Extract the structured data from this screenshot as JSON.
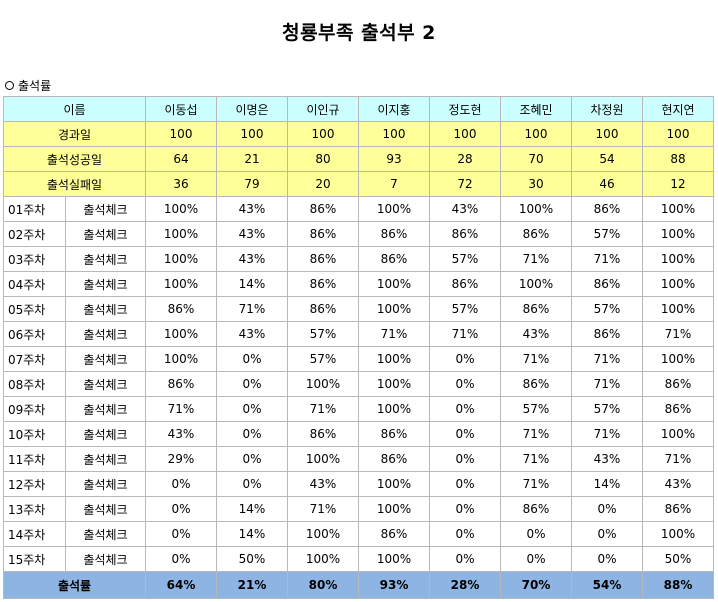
{
  "title": "청룡부족 출석부 2",
  "section_label": "출석률",
  "header": {
    "name_label": "이름",
    "members": [
      "이동섭",
      "이명은",
      "이인규",
      "이지홍",
      "정도현",
      "조혜민",
      "차정원",
      "현지연"
    ]
  },
  "summary_rows": [
    {
      "label": "경과일",
      "values": [
        "100",
        "100",
        "100",
        "100",
        "100",
        "100",
        "100",
        "100"
      ]
    },
    {
      "label": "출석성공일",
      "values": [
        "64",
        "21",
        "80",
        "93",
        "28",
        "70",
        "54",
        "88"
      ]
    },
    {
      "label": "출석실패일",
      "values": [
        "36",
        "79",
        "20",
        "7",
        "72",
        "30",
        "46",
        "12"
      ]
    }
  ],
  "week_rows": [
    {
      "week": "01주차",
      "label": "출석체크",
      "values": [
        "100%",
        "43%",
        "86%",
        "100%",
        "43%",
        "100%",
        "86%",
        "100%"
      ]
    },
    {
      "week": "02주차",
      "label": "출석체크",
      "values": [
        "100%",
        "43%",
        "86%",
        "86%",
        "86%",
        "86%",
        "57%",
        "100%"
      ]
    },
    {
      "week": "03주차",
      "label": "출석체크",
      "values": [
        "100%",
        "43%",
        "86%",
        "86%",
        "57%",
        "71%",
        "71%",
        "100%"
      ]
    },
    {
      "week": "04주차",
      "label": "출석체크",
      "values": [
        "100%",
        "14%",
        "86%",
        "100%",
        "86%",
        "100%",
        "86%",
        "100%"
      ]
    },
    {
      "week": "05주차",
      "label": "출석체크",
      "values": [
        "86%",
        "71%",
        "86%",
        "100%",
        "57%",
        "86%",
        "57%",
        "100%"
      ]
    },
    {
      "week": "06주차",
      "label": "출석체크",
      "values": [
        "100%",
        "43%",
        "57%",
        "71%",
        "71%",
        "43%",
        "86%",
        "71%"
      ]
    },
    {
      "week": "07주차",
      "label": "출석체크",
      "values": [
        "100%",
        "0%",
        "57%",
        "100%",
        "0%",
        "71%",
        "71%",
        "100%"
      ]
    },
    {
      "week": "08주차",
      "label": "출석체크",
      "values": [
        "86%",
        "0%",
        "100%",
        "100%",
        "0%",
        "86%",
        "71%",
        "86%"
      ]
    },
    {
      "week": "09주차",
      "label": "출석체크",
      "values": [
        "71%",
        "0%",
        "71%",
        "100%",
        "0%",
        "57%",
        "57%",
        "86%"
      ]
    },
    {
      "week": "10주차",
      "label": "출석체크",
      "values": [
        "43%",
        "0%",
        "86%",
        "86%",
        "0%",
        "71%",
        "71%",
        "100%"
      ]
    },
    {
      "week": "11주차",
      "label": "출석체크",
      "values": [
        "29%",
        "0%",
        "100%",
        "86%",
        "0%",
        "71%",
        "43%",
        "71%"
      ]
    },
    {
      "week": "12주차",
      "label": "출석체크",
      "values": [
        "0%",
        "0%",
        "43%",
        "100%",
        "0%",
        "71%",
        "14%",
        "43%"
      ]
    },
    {
      "week": "13주차",
      "label": "출석체크",
      "values": [
        "0%",
        "14%",
        "71%",
        "100%",
        "0%",
        "86%",
        "0%",
        "86%"
      ]
    },
    {
      "week": "14주차",
      "label": "출석체크",
      "values": [
        "0%",
        "14%",
        "100%",
        "86%",
        "0%",
        "0%",
        "0%",
        "100%"
      ]
    },
    {
      "week": "15주차",
      "label": "출석체크",
      "values": [
        "0%",
        "50%",
        "100%",
        "100%",
        "0%",
        "0%",
        "0%",
        "50%"
      ]
    }
  ],
  "footer": {
    "label": "출석률",
    "values": [
      "64%",
      "21%",
      "80%",
      "93%",
      "28%",
      "70%",
      "54%",
      "88%"
    ]
  }
}
